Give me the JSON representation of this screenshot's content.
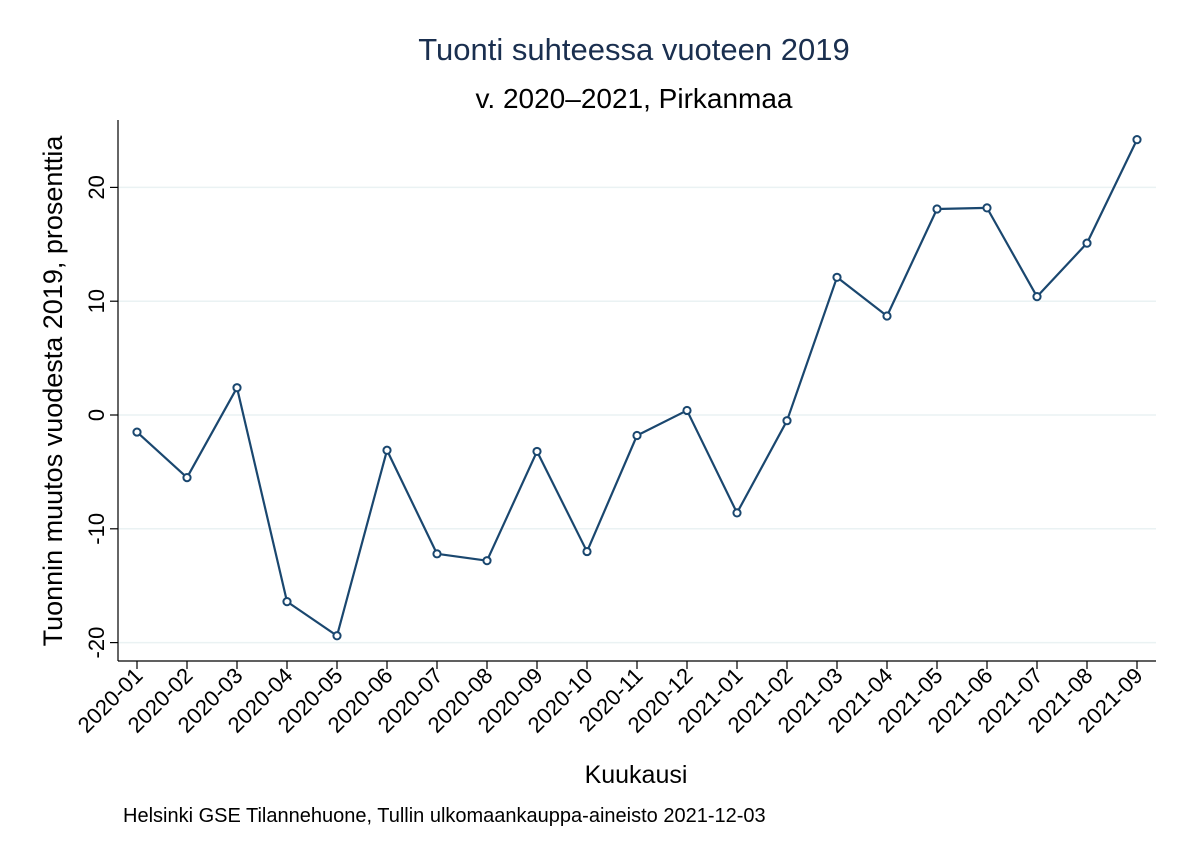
{
  "colors": {
    "title": "#1a2f4f",
    "series": "#1a476f",
    "grid": "#eaf2f3",
    "axis": "#000000",
    "background": "#ffffff"
  },
  "chart_data": {
    "type": "line",
    "title": "Tuonti suhteessa vuoteen 2019",
    "subtitle": "v. 2020–2021, Pirkanmaa",
    "xlabel": "Kuukausi",
    "ylabel": "Tuonnin muutos vuodesta 2019, prosenttia",
    "note": "Helsinki GSE Tilannehuone, Tullin ulkomaankauppa-aineisto 2021-12-03",
    "categories": [
      "2020-01",
      "2020-02",
      "2020-03",
      "2020-04",
      "2020-05",
      "2020-06",
      "2020-07",
      "2020-08",
      "2020-09",
      "2020-10",
      "2020-11",
      "2020-12",
      "2021-01",
      "2021-02",
      "2021-03",
      "2021-04",
      "2021-05",
      "2021-06",
      "2021-07",
      "2021-08",
      "2021-09"
    ],
    "series": [
      {
        "values": [
          -1.5,
          -5.5,
          2.4,
          -16.4,
          -19.4,
          -3.1,
          -12.2,
          -12.8,
          -3.2,
          -12.0,
          -1.8,
          0.4,
          -8.6,
          -0.5,
          12.1,
          8.7,
          18.1,
          18.2,
          10.4,
          15.1,
          24.2
        ]
      }
    ],
    "yticks": [
      -20,
      -10,
      0,
      10,
      20
    ],
    "ylim": [
      -21,
      26
    ],
    "grid": true,
    "legend": "none"
  }
}
